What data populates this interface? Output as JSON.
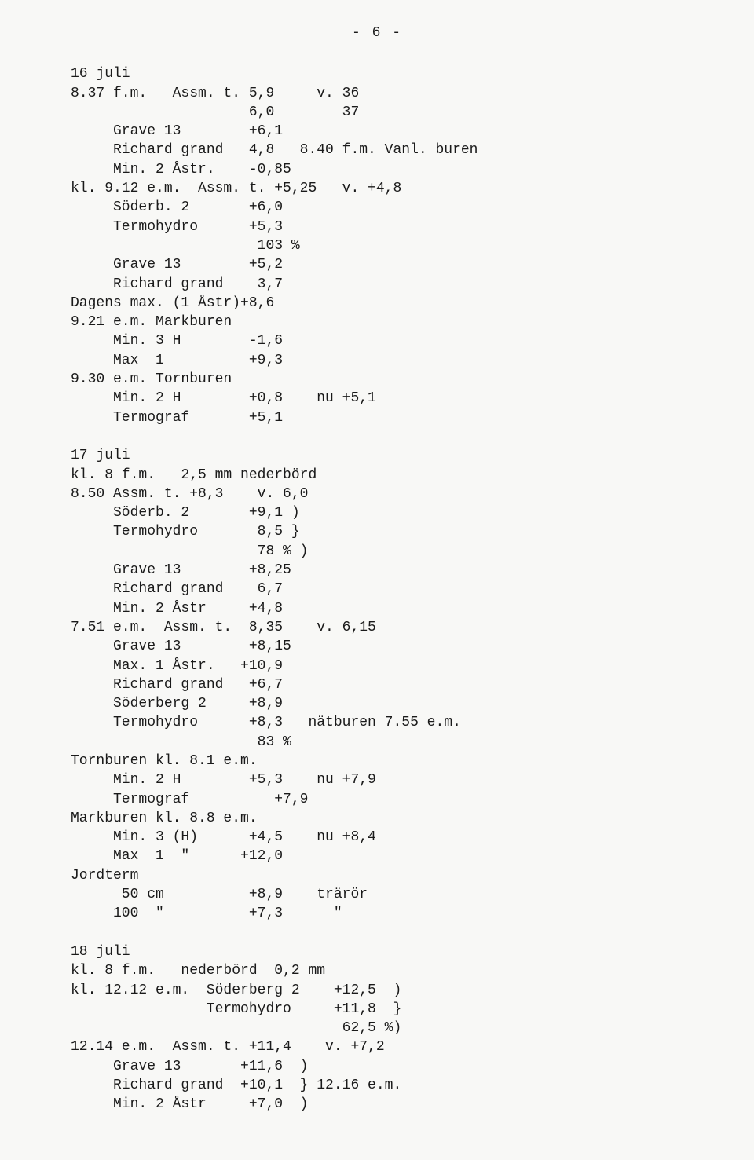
{
  "page_number_display": "- 6 -",
  "font": {
    "family": "Courier New",
    "size_pt": 13.5,
    "color": "#1a1a1a"
  },
  "background_color": "#f8f8f6",
  "lines": [
    "16 juli",
    "8.37 f.m.   Assm. t. 5,9     v. 36",
    "                     6,0        37",
    "     Grave 13        +6,1",
    "     Richard grand   4,8   8.40 f.m. Vanl. buren",
    "     Min. 2 Åstr.    -0,85",
    "kl. 9.12 e.m.  Assm. t. +5,25   v. +4,8",
    "     Söderb. 2       +6,0",
    "     Termohydro      +5,3",
    "                      103 %",
    "     Grave 13        +5,2",
    "     Richard grand    3,7",
    "Dagens max. (1 Åstr)+8,6",
    "9.21 e.m. Markburen",
    "     Min. 3 H        -1,6",
    "     Max  1          +9,3",
    "9.30 e.m. Tornburen",
    "     Min. 2 H        +0,8    nu +5,1",
    "     Termograf       +5,1",
    "",
    "17 juli",
    "kl. 8 f.m.   2,5 mm nederbörd",
    "8.50 Assm. t. +8,3    v. 6,0",
    "     Söderb. 2       +9,1 )",
    "     Termohydro       8,5 }",
    "                      78 % )",
    "     Grave 13        +8,25",
    "     Richard grand    6,7",
    "     Min. 2 Åstr     +4,8",
    "7.51 e.m.  Assm. t.  8,35    v. 6,15",
    "     Grave 13        +8,15",
    "     Max. 1 Åstr.   +10,9",
    "     Richard grand   +6,7",
    "     Söderberg 2     +8,9",
    "     Termohydro      +8,3   nätburen 7.55 e.m.",
    "                      83 %",
    "Tornburen kl. 8.1 e.m.",
    "     Min. 2 H        +5,3    nu +7,9",
    "     Termograf          +7,9",
    "Markburen kl. 8.8 e.m.",
    "     Min. 3 (H)      +4,5    nu +8,4",
    "     Max  1  \"      +12,0",
    "Jordterm",
    "      50 cm          +8,9    trärör",
    "     100  \"          +7,3      \"",
    "",
    "18 juli",
    "kl. 8 f.m.   nederbörd  0,2 mm",
    "kl. 12.12 e.m.  Söderberg 2    +12,5  )",
    "                Termohydro     +11,8  }",
    "                                62,5 %)",
    "12.14 e.m.  Assm. t. +11,4    v. +7,2",
    "     Grave 13       +11,6  )",
    "     Richard grand  +10,1  } 12.16 e.m.",
    "     Min. 2 Åstr     +7,0  )"
  ]
}
